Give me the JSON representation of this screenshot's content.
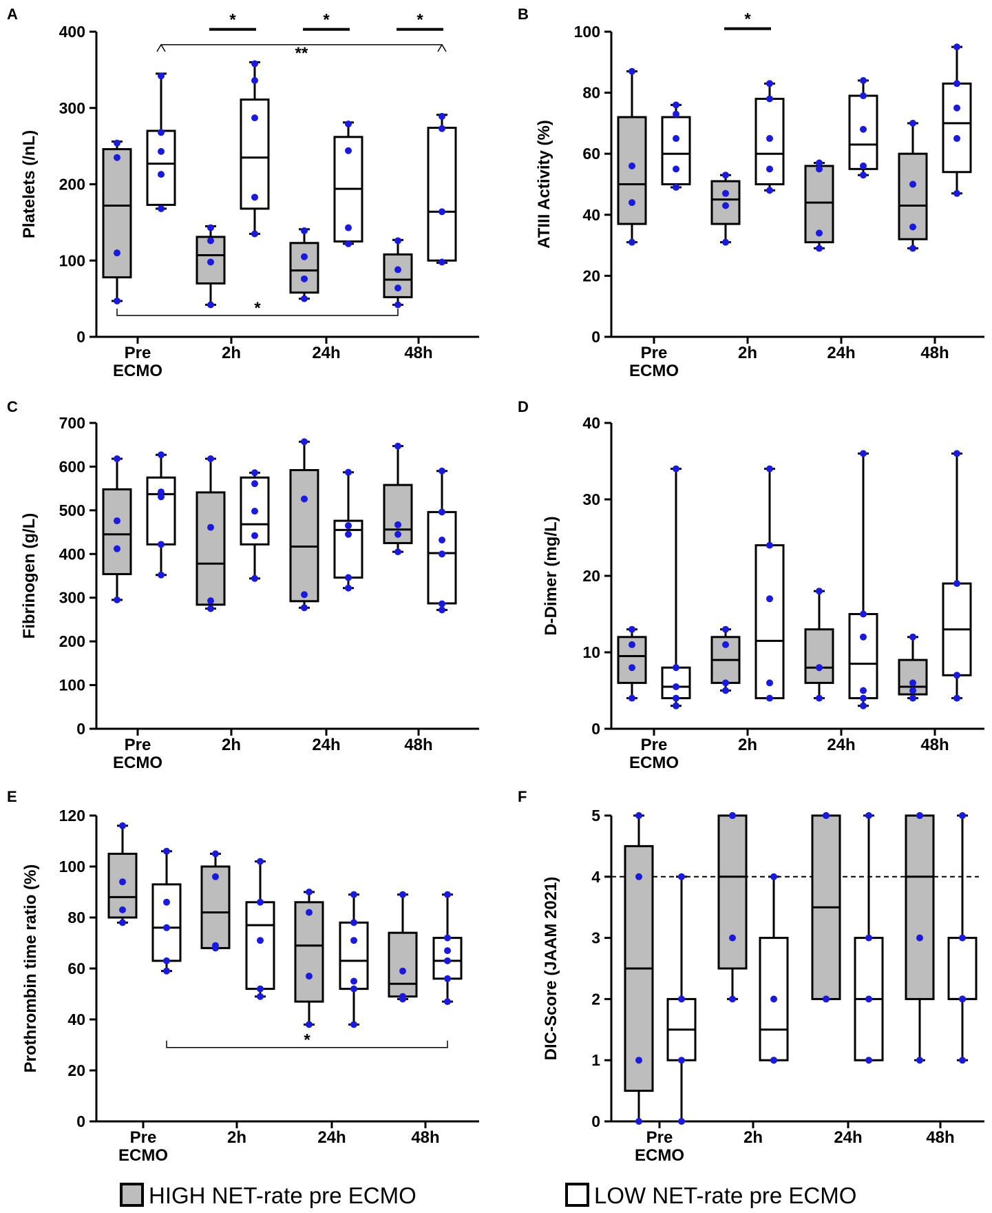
{
  "groups": [
    "HIGH NET-rate pre ECMO",
    "LOW NET-rate pre ECMO"
  ],
  "legend": {
    "high": "HIGH NET-rate pre ECMO",
    "low": "LOW NET-rate pre ECMO"
  },
  "colors": {
    "high_fill": "#bdbdbd",
    "low_fill": "#ffffff",
    "dot": "#1a1adc",
    "stroke": "#000000"
  },
  "chart_data": [
    {
      "panel": "A",
      "type": "box",
      "ylabel": "Platelets (/nL)",
      "ylim": [
        0,
        400
      ],
      "yticks": [
        "0",
        "100",
        "200",
        "300",
        "400"
      ],
      "ytick_values": [
        0,
        100,
        200,
        300,
        400
      ],
      "categories": [
        [
          "Pre",
          "ECMO"
        ],
        [
          "2h"
        ],
        [
          "24h"
        ],
        [
          "48h"
        ]
      ],
      "series": [
        {
          "name": "HIGH NET-rate pre ECMO",
          "boxes": [
            {
              "min": 47,
              "q1": 78,
              "median": 172,
              "q3": 246,
              "max": 256,
              "points": [
                47,
                110,
                235,
                254
              ]
            },
            {
              "min": 42,
              "q1": 70,
              "median": 107,
              "q3": 131,
              "max": 145,
              "points": [
                42,
                98,
                126,
                143
              ]
            },
            {
              "min": 50,
              "q1": 58,
              "median": 87,
              "q3": 123,
              "max": 141,
              "points": [
                50,
                76,
                105,
                139
              ]
            },
            {
              "min": 42,
              "q1": 52,
              "median": 75,
              "q3": 108,
              "max": 127,
              "points": [
                42,
                64,
                88,
                126
              ]
            }
          ]
        },
        {
          "name": "LOW NET-rate pre ECMO",
          "boxes": [
            {
              "min": 168,
              "q1": 173,
              "median": 227,
              "q3": 270,
              "max": 345,
              "points": [
                168,
                213,
                243,
                268,
                342
              ]
            },
            {
              "min": 135,
              "q1": 168,
              "median": 235,
              "q3": 311,
              "max": 360,
              "points": [
                135,
                183,
                287,
                336,
                358
              ]
            },
            {
              "min": 122,
              "q1": 125,
              "median": 194,
              "q3": 262,
              "max": 281,
              "points": [
                122,
                143,
                244,
                279
              ]
            },
            {
              "min": 97,
              "q1": 100,
              "median": 164,
              "q3": 274,
              "max": 291,
              "points": [
                98,
                164,
                273,
                289
              ]
            }
          ]
        }
      ],
      "significance": [
        {
          "label": "*",
          "type": "bar",
          "x_from": "2h high",
          "x_to": "2h low",
          "y": 403
        },
        {
          "label": "*",
          "type": "bar",
          "x_from": "24h high",
          "x_to": "24h low",
          "y": 403
        },
        {
          "label": "*",
          "type": "bar",
          "x_from": "48h high",
          "x_to": "48h low",
          "y": 403
        },
        {
          "label": "**",
          "type": "bracket-down",
          "x_from": "Pre ECMO low",
          "x_to": "48h low",
          "y": 383
        },
        {
          "label": "*",
          "type": "bracket-up",
          "x_from": "Pre ECMO high",
          "x_to": "48h high",
          "y": 28
        }
      ]
    },
    {
      "panel": "B",
      "type": "box",
      "ylabel": "ATIII Activity (%)",
      "ylim": [
        0,
        100
      ],
      "yticks": [
        "0",
        "20",
        "40",
        "60",
        "80",
        "100"
      ],
      "ytick_values": [
        0,
        20,
        40,
        60,
        80,
        100
      ],
      "categories": [
        [
          "Pre",
          "ECMO"
        ],
        [
          "2h"
        ],
        [
          "24h"
        ],
        [
          "48h"
        ]
      ],
      "series": [
        {
          "name": "HIGH NET-rate pre ECMO",
          "boxes": [
            {
              "min": 31,
              "q1": 37,
              "median": 50,
              "q3": 72,
              "max": 87,
              "points": [
                31,
                44,
                56,
                87
              ]
            },
            {
              "min": 31,
              "q1": 37,
              "median": 45,
              "q3": 51,
              "max": 53,
              "points": [
                31,
                43,
                47,
                53
              ]
            },
            {
              "min": 29,
              "q1": 31,
              "median": 44,
              "q3": 56,
              "max": 57,
              "points": [
                29,
                34,
                55,
                57
              ]
            },
            {
              "min": 29,
              "q1": 32,
              "median": 43,
              "q3": 60,
              "max": 70,
              "points": [
                29,
                36,
                50,
                70
              ]
            }
          ]
        },
        {
          "name": "LOW NET-rate pre ECMO",
          "boxes": [
            {
              "min": 49,
              "q1": 50,
              "median": 60,
              "q3": 72,
              "max": 76,
              "points": [
                49,
                55,
                65,
                73,
                76
              ]
            },
            {
              "min": 48,
              "q1": 50,
              "median": 60,
              "q3": 78,
              "max": 83,
              "points": [
                48,
                55,
                65,
                78,
                83
              ]
            },
            {
              "min": 53,
              "q1": 55,
              "median": 63,
              "q3": 79,
              "max": 84,
              "points": [
                53,
                56,
                68,
                79,
                84
              ]
            },
            {
              "min": 47,
              "q1": 54,
              "median": 70,
              "q3": 83,
              "max": 95,
              "points": [
                47,
                65,
                75,
                83,
                95
              ]
            }
          ]
        }
      ],
      "significance": [
        {
          "label": "*",
          "type": "bar",
          "x_from": "2h high",
          "x_to": "2h low",
          "y": 101
        }
      ]
    },
    {
      "panel": "C",
      "type": "box",
      "ylabel": "Fibrinogen (g/L)",
      "ylim": [
        0,
        700
      ],
      "yticks": [
        "0",
        "100",
        "200",
        "300",
        "400",
        "500",
        "600",
        "700"
      ],
      "ytick_values": [
        0,
        100,
        200,
        300,
        400,
        500,
        600,
        700
      ],
      "categories": [
        [
          "Pre",
          "ECMO"
        ],
        [
          "2h"
        ],
        [
          "24h"
        ],
        [
          "48h"
        ]
      ],
      "series": [
        {
          "name": "HIGH NET-rate pre ECMO",
          "boxes": [
            {
              "min": 295,
              "q1": 354,
              "median": 445,
              "q3": 548,
              "max": 618,
              "points": [
                295,
                412,
                476,
                618
              ]
            },
            {
              "min": 275,
              "q1": 284,
              "median": 378,
              "q3": 541,
              "max": 618,
              "points": [
                275,
                293,
                461,
                618
              ]
            },
            {
              "min": 277,
              "q1": 292,
              "median": 417,
              "q3": 592,
              "max": 657,
              "points": [
                277,
                307,
                526,
                657
              ]
            },
            {
              "min": 405,
              "q1": 425,
              "median": 456,
              "q3": 558,
              "max": 647,
              "points": [
                405,
                445,
                467,
                647
              ]
            }
          ]
        },
        {
          "name": "LOW NET-rate pre ECMO",
          "boxes": [
            {
              "min": 352,
              "q1": 422,
              "median": 537,
              "q3": 575,
              "max": 627,
              "points": [
                352,
                422,
                531,
                542,
                627
              ]
            },
            {
              "min": 344,
              "q1": 422,
              "median": 468,
              "q3": 575,
              "max": 586,
              "points": [
                344,
                442,
                498,
                561,
                586
              ]
            },
            {
              "min": 322,
              "q1": 346,
              "median": 455,
              "q3": 476,
              "max": 587,
              "points": [
                322,
                346,
                445,
                465,
                587
              ]
            },
            {
              "min": 272,
              "q1": 287,
              "median": 402,
              "q3": 496,
              "max": 590,
              "points": [
                272,
                286,
                400,
                432,
                496,
                590
              ]
            }
          ]
        }
      ],
      "significance": []
    },
    {
      "panel": "D",
      "type": "box",
      "ylabel": "D-Dimer (mg/L)",
      "ylim": [
        0,
        40
      ],
      "yticks": [
        "0",
        "10",
        "20",
        "30",
        "40"
      ],
      "ytick_values": [
        0,
        10,
        20,
        30,
        40
      ],
      "categories": [
        [
          "Pre",
          "ECMO"
        ],
        [
          "2h"
        ],
        [
          "24h"
        ],
        [
          "48h"
        ]
      ],
      "series": [
        {
          "name": "HIGH NET-rate pre ECMO",
          "boxes": [
            {
              "min": 4,
              "q1": 6,
              "median": 9.5,
              "q3": 12,
              "max": 13,
              "points": [
                4,
                8,
                11,
                13
              ]
            },
            {
              "min": 5,
              "q1": 6,
              "median": 9,
              "q3": 12,
              "max": 13,
              "points": [
                5,
                6,
                11,
                13
              ]
            },
            {
              "min": 4,
              "q1": 6,
              "median": 8,
              "q3": 13,
              "max": 18,
              "points": [
                4,
                8,
                8,
                18
              ]
            },
            {
              "min": 4,
              "q1": 4.5,
              "median": 5.5,
              "q3": 9,
              "max": 12,
              "points": [
                4,
                5,
                6,
                12
              ]
            }
          ]
        },
        {
          "name": "LOW NET-rate pre ECMO",
          "boxes": [
            {
              "min": 3,
              "q1": 4,
              "median": 5.5,
              "q3": 8,
              "max": 34,
              "points": [
                3,
                4,
                5.5,
                8,
                34
              ]
            },
            {
              "min": 4,
              "q1": 4,
              "median": 11.5,
              "q3": 24,
              "max": 34,
              "points": [
                4,
                6,
                17,
                24,
                34
              ]
            },
            {
              "min": 3,
              "q1": 4,
              "median": 8.5,
              "q3": 15,
              "max": 36,
              "points": [
                3,
                4,
                5,
                12,
                15,
                36
              ]
            },
            {
              "min": 4,
              "q1": 7,
              "median": 13,
              "q3": 19,
              "max": 36,
              "points": [
                4,
                7,
                19,
                36
              ]
            }
          ]
        }
      ],
      "significance": []
    },
    {
      "panel": "E",
      "type": "box",
      "ylabel": "Prothrombin time ratio (%)",
      "ylim": [
        0,
        120
      ],
      "yticks": [
        "0",
        "20",
        "40",
        "60",
        "80",
        "100",
        "120"
      ],
      "ytick_values": [
        0,
        20,
        40,
        60,
        80,
        100,
        120
      ],
      "categories": [
        [
          "Pre",
          "ECMO"
        ],
        [
          "2h"
        ],
        [
          "24h"
        ],
        [
          "48h"
        ]
      ],
      "series": [
        {
          "name": "HIGH NET-rate pre ECMO",
          "boxes": [
            {
              "min": 78,
              "q1": 80,
              "median": 88,
              "q3": 105,
              "max": 116,
              "points": [
                78,
                83,
                94,
                116
              ]
            },
            {
              "min": 68,
              "q1": 68,
              "median": 82,
              "q3": 100,
              "max": 105,
              "points": [
                68,
                69,
                96,
                105
              ]
            },
            {
              "min": 38,
              "q1": 47,
              "median": 69,
              "q3": 86,
              "max": 90,
              "points": [
                38,
                57,
                82,
                90
              ]
            },
            {
              "min": 48,
              "q1": 49,
              "median": 54,
              "q3": 74,
              "max": 89,
              "points": [
                48,
                49,
                59,
                89
              ]
            }
          ]
        },
        {
          "name": "LOW NET-rate pre ECMO",
          "boxes": [
            {
              "min": 59,
              "q1": 63,
              "median": 76,
              "q3": 93,
              "max": 106,
              "points": [
                59,
                63,
                76,
                86,
                106
              ]
            },
            {
              "min": 49,
              "q1": 52,
              "median": 77,
              "q3": 86,
              "max": 102,
              "points": [
                49,
                52,
                71,
                86,
                102
              ]
            },
            {
              "min": 38,
              "q1": 52,
              "median": 63,
              "q3": 78,
              "max": 89,
              "points": [
                38,
                52,
                55,
                71,
                78,
                89
              ]
            },
            {
              "min": 47,
              "q1": 56,
              "median": 63,
              "q3": 72,
              "max": 89,
              "points": [
                47,
                56,
                63,
                67,
                72,
                89
              ]
            }
          ]
        }
      ],
      "significance": [
        {
          "label": "*",
          "type": "bracket-up",
          "x_from": "Pre ECMO low",
          "x_to": "48h low",
          "y": 29
        }
      ]
    },
    {
      "panel": "F",
      "type": "box",
      "ylabel": "DIC-Score (JAAM 2021)",
      "ylim": [
        0,
        5
      ],
      "yticks": [
        "0",
        "1",
        "2",
        "3",
        "4",
        "5"
      ],
      "ytick_values": [
        0,
        1,
        2,
        3,
        4,
        5
      ],
      "reference_line": 4,
      "categories": [
        [
          "Pre",
          "ECMO"
        ],
        [
          "2h"
        ],
        [
          "24h"
        ],
        [
          "48h"
        ]
      ],
      "series": [
        {
          "name": "HIGH NET-rate pre ECMO",
          "boxes": [
            {
              "min": 0,
              "q1": 0.5,
              "median": 2.5,
              "q3": 4.5,
              "max": 5,
              "points": [
                0,
                1,
                4,
                5
              ]
            },
            {
              "min": 2,
              "q1": 2.5,
              "median": 4,
              "q3": 5,
              "max": 5,
              "points": [
                2,
                3,
                5,
                5
              ]
            },
            {
              "min": 2,
              "q1": 2,
              "median": 3.5,
              "q3": 5,
              "max": 5,
              "points": [
                2,
                2,
                5,
                5
              ]
            },
            {
              "min": 1,
              "q1": 2,
              "median": 4,
              "q3": 5,
              "max": 5,
              "points": [
                1,
                3,
                5,
                5
              ]
            }
          ]
        },
        {
          "name": "LOW NET-rate pre ECMO",
          "boxes": [
            {
              "min": 0,
              "q1": 1,
              "median": 1.5,
              "q3": 2,
              "max": 4,
              "points": [
                0,
                1,
                2,
                4
              ]
            },
            {
              "min": 1,
              "q1": 1,
              "median": 1.5,
              "q3": 3,
              "max": 4,
              "points": [
                1,
                1,
                2,
                4
              ]
            },
            {
              "min": 1,
              "q1": 1,
              "median": 2,
              "q3": 3,
              "max": 5,
              "points": [
                1,
                2,
                3,
                5
              ]
            },
            {
              "min": 1,
              "q1": 2,
              "median": 2,
              "q3": 3,
              "max": 5,
              "points": [
                1,
                2,
                2,
                3,
                5
              ]
            }
          ]
        }
      ],
      "significance": []
    }
  ]
}
